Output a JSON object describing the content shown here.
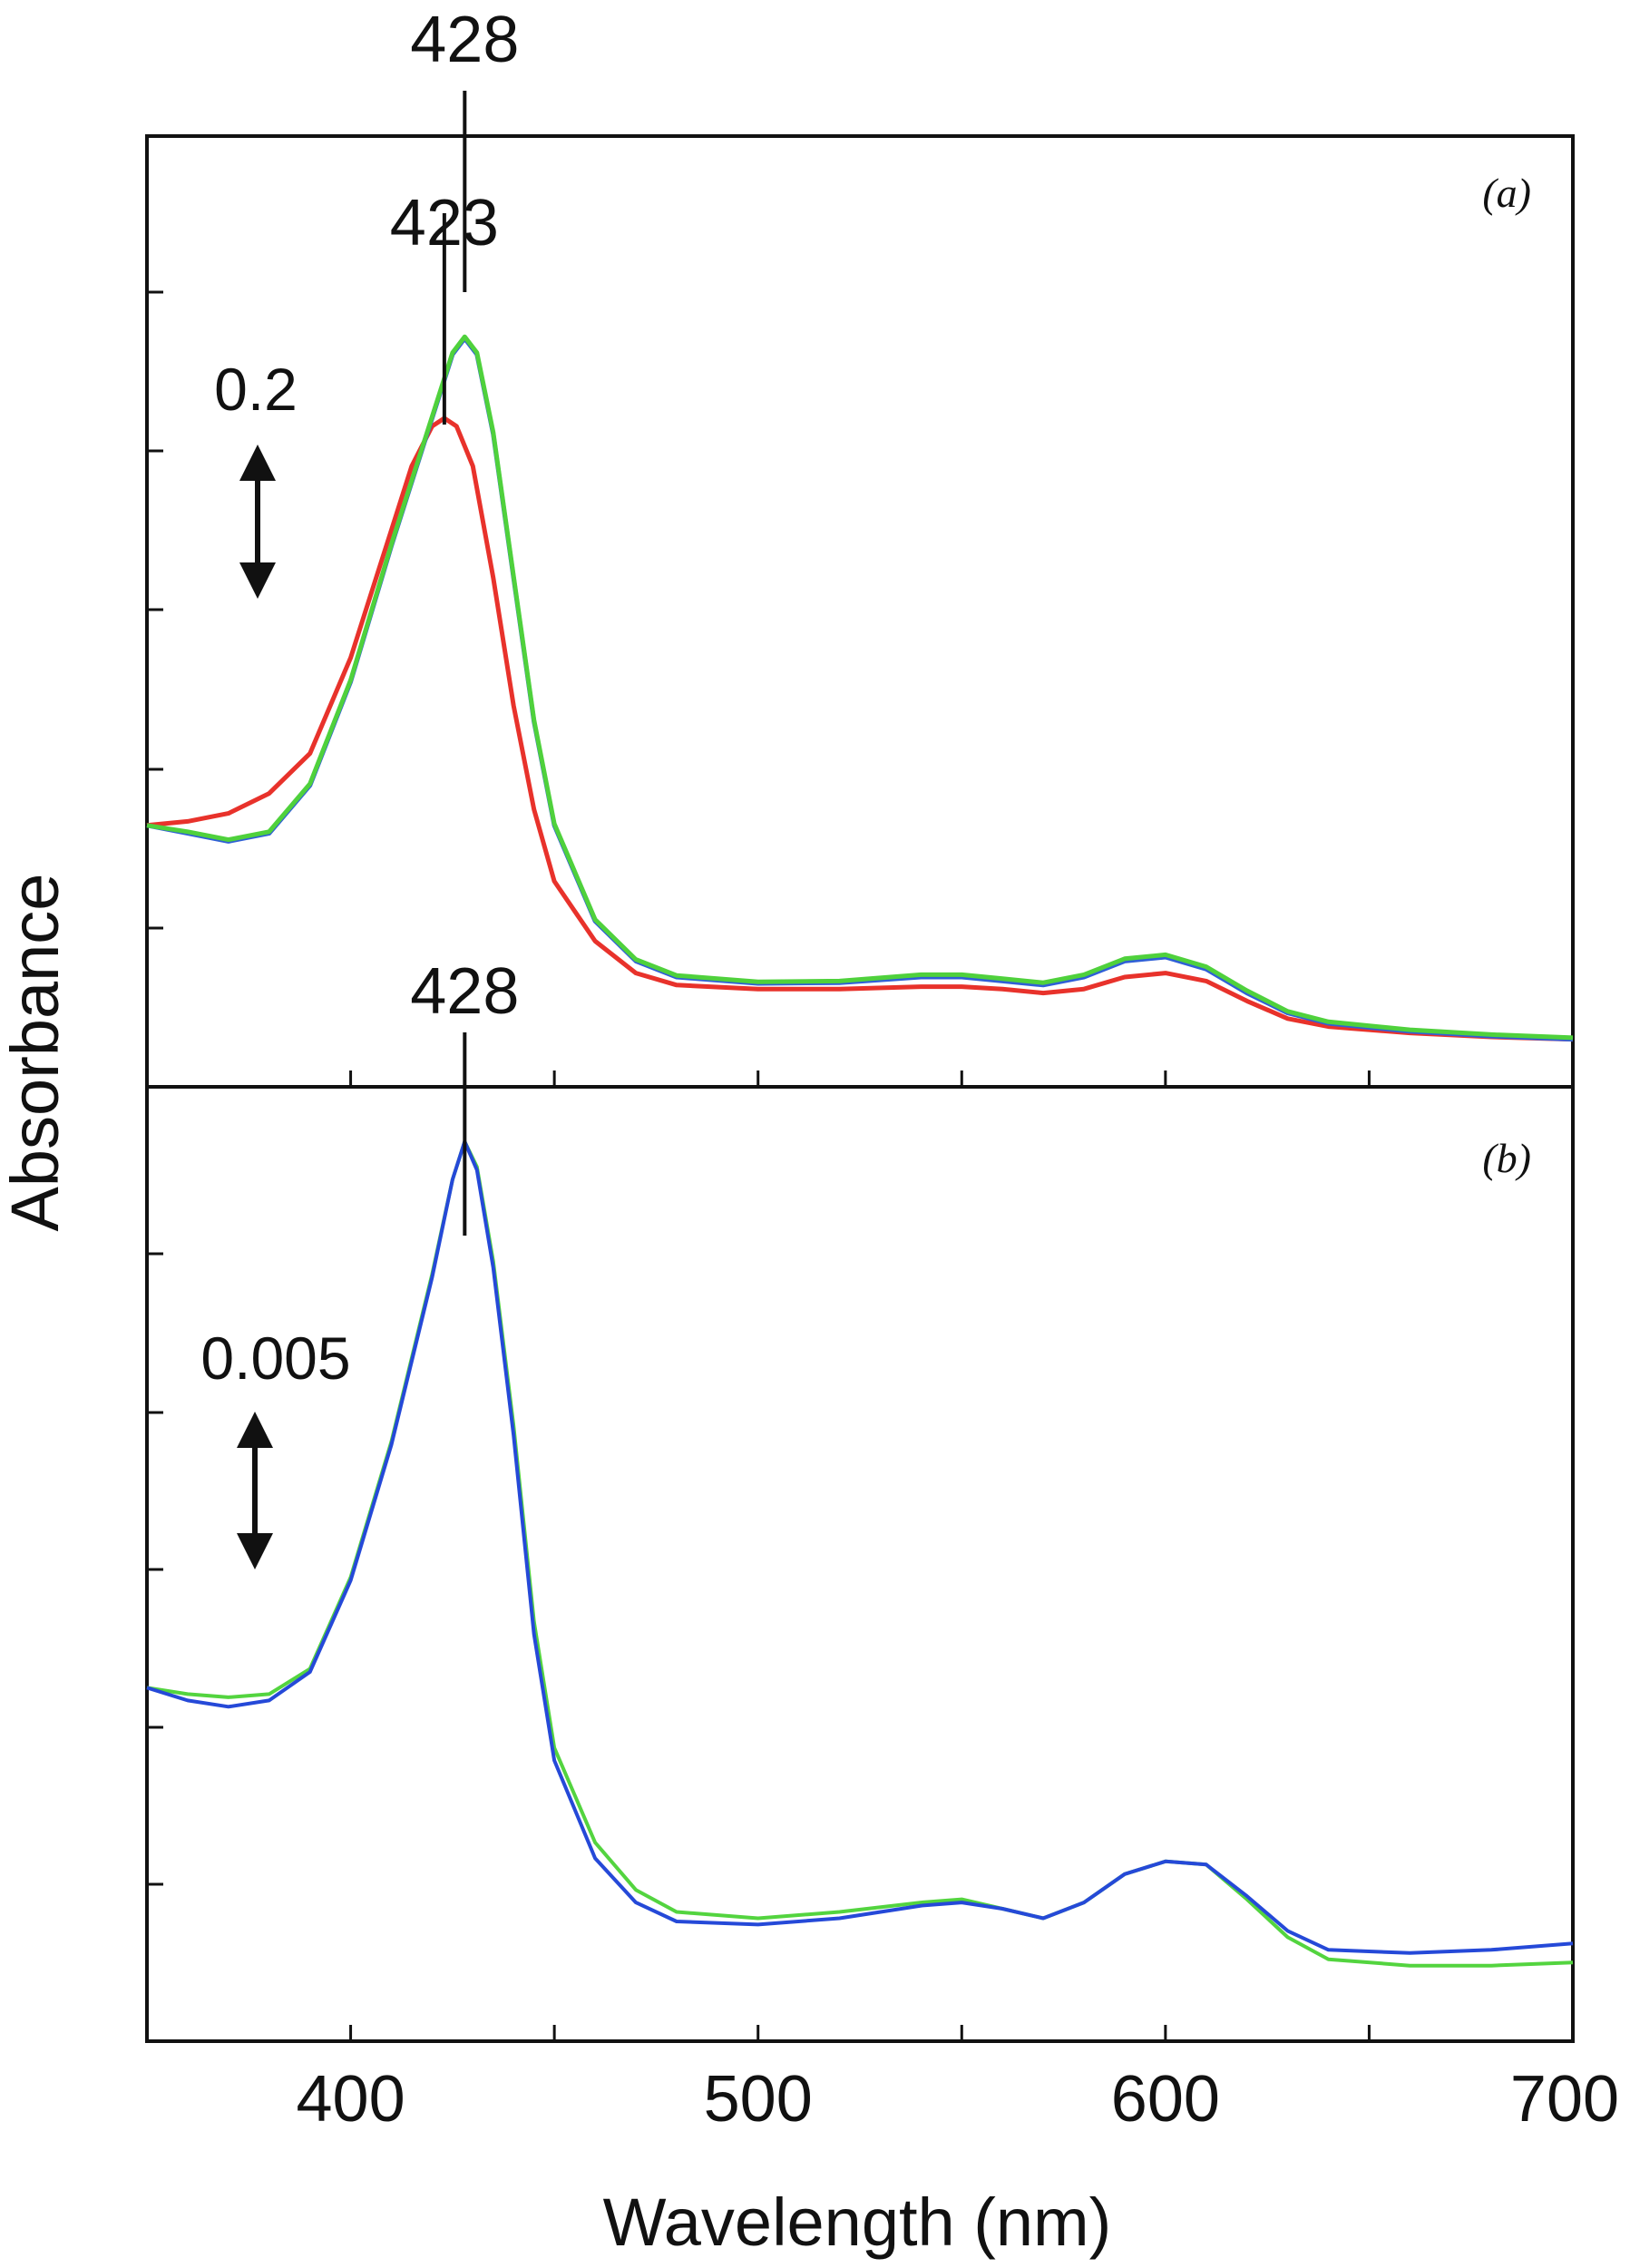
{
  "figure": {
    "ylabel": "Absorbance",
    "xlabel": "Wavelength (nm)",
    "x_tick_labels": [
      "400",
      "500",
      "600",
      "700"
    ]
  },
  "chart_data": [
    {
      "type": "line",
      "panel_label": "(a)",
      "xlim": [
        350,
        700
      ],
      "y_unit": "arbitrary (offset)",
      "scale_bar": {
        "label": "0.2",
        "value": 0.2
      },
      "grid": false,
      "annotations": [
        {
          "label": "423",
          "x": 423
        },
        {
          "label": "428",
          "x": 428
        }
      ],
      "series": [
        {
          "color": "#e8322b",
          "points": [
            [
              350,
              0.29
            ],
            [
              360,
              0.295
            ],
            [
              370,
              0.305
            ],
            [
              380,
              0.33
            ],
            [
              390,
              0.38
            ],
            [
              400,
              0.5
            ],
            [
              410,
              0.66
            ],
            [
              415,
              0.74
            ],
            [
              420,
              0.79
            ],
            [
              423,
              0.8
            ],
            [
              426,
              0.79
            ],
            [
              430,
              0.74
            ],
            [
              435,
              0.6
            ],
            [
              440,
              0.44
            ],
            [
              445,
              0.31
            ],
            [
              450,
              0.22
            ],
            [
              460,
              0.145
            ],
            [
              470,
              0.105
            ],
            [
              480,
              0.09
            ],
            [
              500,
              0.085
            ],
            [
              520,
              0.085
            ],
            [
              540,
              0.088
            ],
            [
              550,
              0.088
            ],
            [
              560,
              0.085
            ],
            [
              570,
              0.08
            ],
            [
              580,
              0.085
            ],
            [
              590,
              0.1
            ],
            [
              600,
              0.105
            ],
            [
              610,
              0.095
            ],
            [
              620,
              0.07
            ],
            [
              630,
              0.048
            ],
            [
              640,
              0.038
            ],
            [
              660,
              0.03
            ],
            [
              680,
              0.025
            ],
            [
              700,
              0.022
            ]
          ]
        },
        {
          "color": "#2f5fd6",
          "points": [
            [
              350,
              0.29
            ],
            [
              360,
              0.28
            ],
            [
              370,
              0.27
            ],
            [
              380,
              0.28
            ],
            [
              390,
              0.34
            ],
            [
              400,
              0.47
            ],
            [
              410,
              0.64
            ],
            [
              420,
              0.8
            ],
            [
              425,
              0.88
            ],
            [
              428,
              0.9
            ],
            [
              431,
              0.88
            ],
            [
              435,
              0.78
            ],
            [
              440,
              0.6
            ],
            [
              445,
              0.42
            ],
            [
              450,
              0.29
            ],
            [
              460,
              0.17
            ],
            [
              470,
              0.12
            ],
            [
              480,
              0.1
            ],
            [
              500,
              0.092
            ],
            [
              520,
              0.093
            ],
            [
              540,
              0.1
            ],
            [
              550,
              0.1
            ],
            [
              560,
              0.095
            ],
            [
              570,
              0.09
            ],
            [
              580,
              0.1
            ],
            [
              590,
              0.12
            ],
            [
              600,
              0.125
            ],
            [
              610,
              0.11
            ],
            [
              620,
              0.08
            ],
            [
              630,
              0.055
            ],
            [
              640,
              0.042
            ],
            [
              660,
              0.032
            ],
            [
              680,
              0.026
            ],
            [
              700,
              0.022
            ]
          ]
        },
        {
          "color": "#4fd13c",
          "points": [
            [
              350,
              0.29
            ],
            [
              360,
              0.282
            ],
            [
              370,
              0.272
            ],
            [
              380,
              0.282
            ],
            [
              390,
              0.342
            ],
            [
              400,
              0.472
            ],
            [
              410,
              0.642
            ],
            [
              420,
              0.802
            ],
            [
              425,
              0.882
            ],
            [
              428,
              0.902
            ],
            [
              431,
              0.882
            ],
            [
              435,
              0.782
            ],
            [
              440,
              0.602
            ],
            [
              445,
              0.422
            ],
            [
              450,
              0.292
            ],
            [
              460,
              0.172
            ],
            [
              470,
              0.122
            ],
            [
              480,
              0.102
            ],
            [
              500,
              0.094
            ],
            [
              520,
              0.095
            ],
            [
              540,
              0.103
            ],
            [
              550,
              0.103
            ],
            [
              560,
              0.098
            ],
            [
              570,
              0.093
            ],
            [
              580,
              0.103
            ],
            [
              590,
              0.123
            ],
            [
              600,
              0.128
            ],
            [
              610,
              0.113
            ],
            [
              620,
              0.083
            ],
            [
              630,
              0.057
            ],
            [
              640,
              0.044
            ],
            [
              660,
              0.034
            ],
            [
              680,
              0.028
            ],
            [
              700,
              0.024
            ]
          ]
        }
      ]
    },
    {
      "type": "line",
      "panel_label": "(b)",
      "xlim": [
        350,
        700
      ],
      "y_unit": "arbitrary (offset)",
      "scale_bar": {
        "label": "0.005",
        "value": 0.005
      },
      "grid": false,
      "annotations": [
        {
          "label": "428",
          "x": 428
        }
      ],
      "series": [
        {
          "color": "#53d43f",
          "points": [
            [
              350,
              0.0097
            ],
            [
              360,
              0.0095
            ],
            [
              370,
              0.0094
            ],
            [
              380,
              0.0095
            ],
            [
              390,
              0.0103
            ],
            [
              400,
              0.0132
            ],
            [
              410,
              0.0175
            ],
            [
              420,
              0.0228
            ],
            [
              425,
              0.0258
            ],
            [
              428,
              0.027
            ],
            [
              431,
              0.0262
            ],
            [
              435,
              0.0232
            ],
            [
              440,
              0.018
            ],
            [
              445,
              0.0118
            ],
            [
              450,
              0.0078
            ],
            [
              460,
              0.0048
            ],
            [
              470,
              0.0033
            ],
            [
              480,
              0.0026
            ],
            [
              500,
              0.0024
            ],
            [
              520,
              0.0026
            ],
            [
              540,
              0.0029
            ],
            [
              550,
              0.003
            ],
            [
              560,
              0.0027
            ],
            [
              570,
              0.0024
            ],
            [
              580,
              0.0029
            ],
            [
              590,
              0.0038
            ],
            [
              600,
              0.0042
            ],
            [
              610,
              0.0041
            ],
            [
              620,
              0.003
            ],
            [
              630,
              0.0018
            ],
            [
              640,
              0.0011
            ],
            [
              660,
              0.0009
            ],
            [
              680,
              0.0009
            ],
            [
              700,
              0.001
            ]
          ]
        },
        {
          "color": "#2549d8",
          "points": [
            [
              350,
              0.0097
            ],
            [
              360,
              0.0093
            ],
            [
              370,
              0.0091
            ],
            [
              380,
              0.0093
            ],
            [
              390,
              0.0102
            ],
            [
              400,
              0.0131
            ],
            [
              410,
              0.0174
            ],
            [
              420,
              0.0227
            ],
            [
              425,
              0.0258
            ],
            [
              428,
              0.027
            ],
            [
              431,
              0.0261
            ],
            [
              435,
              0.023
            ],
            [
              440,
              0.0177
            ],
            [
              445,
              0.0114
            ],
            [
              450,
              0.0074
            ],
            [
              460,
              0.0043
            ],
            [
              470,
              0.0029
            ],
            [
              480,
              0.0023
            ],
            [
              500,
              0.0022
            ],
            [
              520,
              0.0024
            ],
            [
              540,
              0.0028
            ],
            [
              550,
              0.0029
            ],
            [
              560,
              0.0027
            ],
            [
              570,
              0.0024
            ],
            [
              580,
              0.0029
            ],
            [
              590,
              0.0038
            ],
            [
              600,
              0.0042
            ],
            [
              610,
              0.0041
            ],
            [
              620,
              0.0031
            ],
            [
              630,
              0.002
            ],
            [
              640,
              0.0014
            ],
            [
              660,
              0.0013
            ],
            [
              680,
              0.0014
            ],
            [
              700,
              0.0016
            ]
          ]
        }
      ]
    }
  ]
}
